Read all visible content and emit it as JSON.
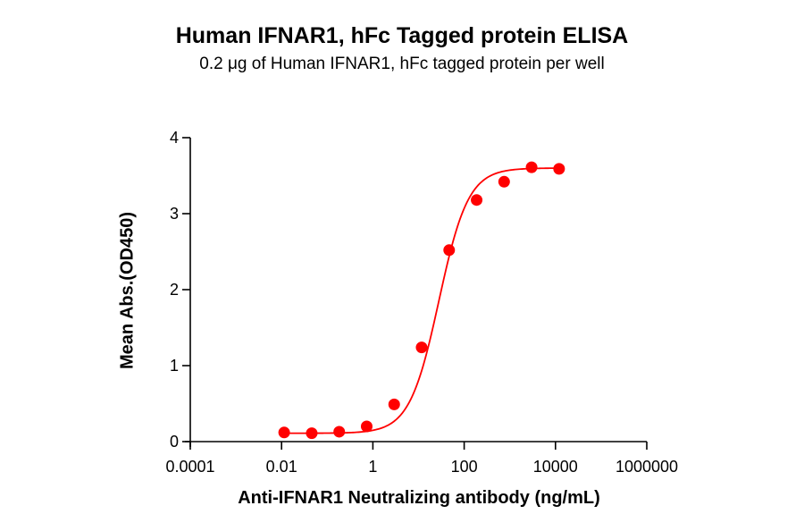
{
  "chart_data": {
    "type": "scatter",
    "title": "Human IFNAR1, hFc Tagged protein ELISA",
    "subtitle": "0.2 μg of Human IFNAR1, hFc tagged protein per well",
    "xlabel": "Anti-IFNAR1 Neutralizing antibody (ng/mL)",
    "ylabel": "Mean Abs.(OD450)",
    "xscale": "log",
    "xlim": [
      0.0001,
      1000000
    ],
    "ylim": [
      0,
      4
    ],
    "x_ticks": [
      "0.0001",
      "0.01",
      "1",
      "100",
      "10000",
      "1000000"
    ],
    "y_ticks": [
      "0",
      "1",
      "2",
      "3",
      "4"
    ],
    "grid": false,
    "legend": null,
    "fit": "4-parameter logistic curve",
    "series": [
      {
        "name": "Anti-IFNAR1 Neutralizing antibody",
        "color": "#ff0000",
        "x": [
          0.0114,
          0.0458,
          0.183,
          0.732,
          2.93,
          11.7,
          46.9,
          187.5,
          750,
          3000,
          12000
        ],
        "y": [
          0.12,
          0.11,
          0.13,
          0.2,
          0.49,
          1.24,
          2.52,
          3.18,
          3.42,
          3.61,
          3.59
        ]
      }
    ]
  }
}
